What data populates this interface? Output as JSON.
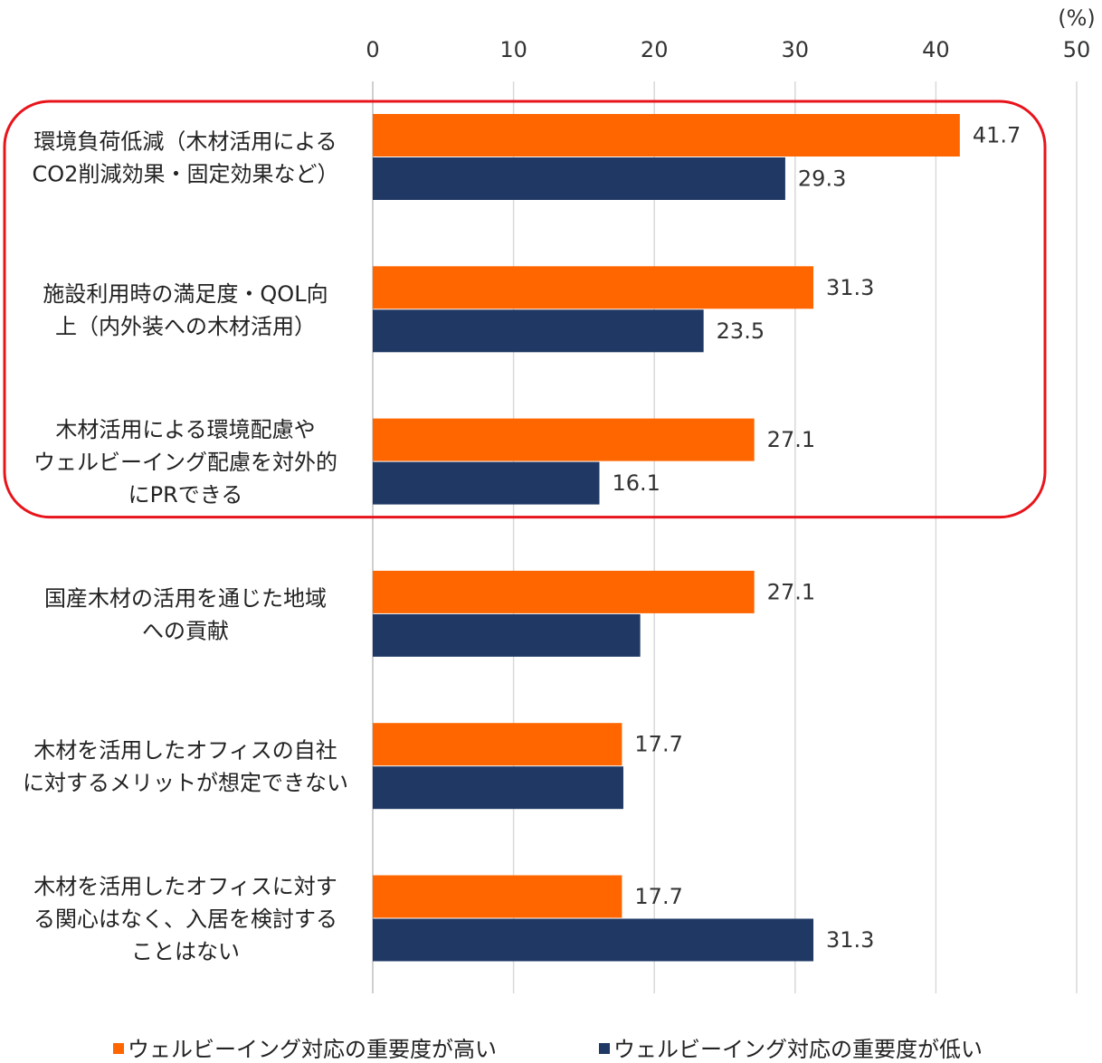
{
  "chart_data": {
    "type": "bar",
    "orientation": "horizontal",
    "unit_label": "(%)",
    "xlim": [
      0,
      50
    ],
    "xticks": [
      0,
      10,
      20,
      30,
      40,
      50
    ],
    "grid": true,
    "legend_position": "bottom",
    "categories": [
      [
        "環境負荷低減（木材活用による",
        "CO2削減効果・固定効果など）"
      ],
      [
        "施設利用時の満足度・QOL向",
        "上（内外装への木材活用）"
      ],
      [
        "木材活用による環境配慮や",
        "ウェルビーイング配慮を対外的",
        "にPRできる"
      ],
      [
        "国産木材の活用を通じた地域",
        "への貢献"
      ],
      [
        "木材を活用したオフィスの自社",
        "に対するメリットが想定できない"
      ],
      [
        "木材を活用したオフィスに対す",
        "る関心はなく、入居を検討する",
        "ことはない"
      ]
    ],
    "series": [
      {
        "name": "ウェルビーイング対応の重要度が高い",
        "color": "#ff6600",
        "values": [
          41.7,
          31.3,
          27.1,
          27.1,
          17.7,
          17.7
        ],
        "labels": [
          "41.7",
          "31.3",
          "27.1",
          "27.1",
          "17.7",
          "17.7"
        ]
      },
      {
        "name": "ウェルビーイング対応の重要度が低い",
        "color": "#1f3864",
        "values": [
          29.3,
          23.5,
          16.1,
          19.0,
          17.8,
          31.3
        ],
        "labels": [
          "29.3",
          "23.5",
          "16.1",
          "",
          "",
          "31.3"
        ]
      }
    ],
    "highlight_box": {
      "color": "#e8141b",
      "categories": [
        0,
        1,
        2
      ]
    }
  }
}
